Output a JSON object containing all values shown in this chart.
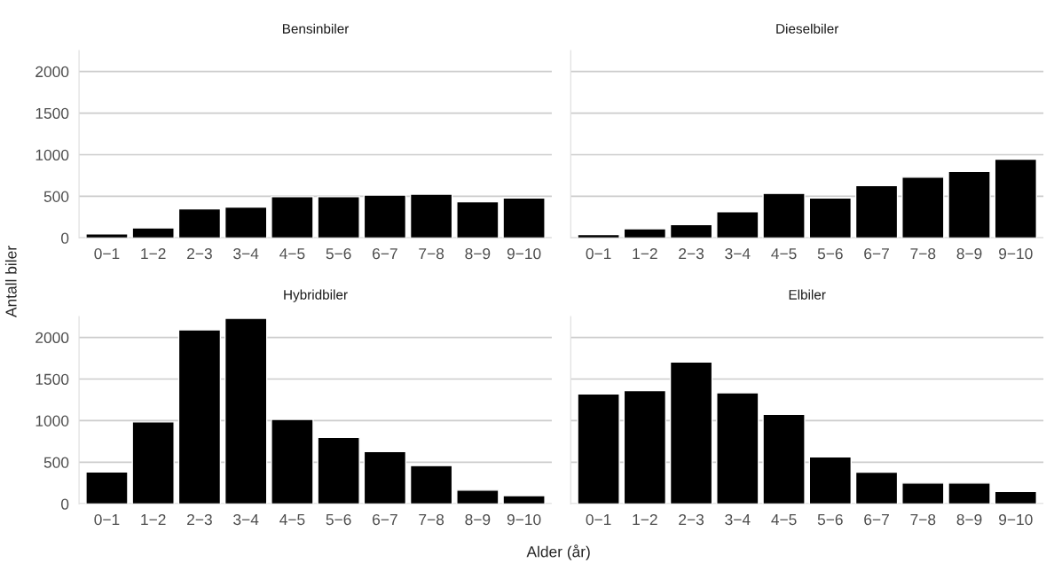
{
  "chart_data": [
    {
      "type": "bar",
      "title": "Bensinbiler",
      "ylabel": "Antall biler",
      "categories": [
        "0−1",
        "1−2",
        "2−3",
        "3−4",
        "4−5",
        "5−6",
        "6−7",
        "7−8",
        "8−9",
        "9−10"
      ],
      "values": [
        50,
        120,
        350,
        370,
        495,
        495,
        515,
        525,
        435,
        480
      ],
      "color": "#000000",
      "ylim": [
        0,
        2250
      ],
      "yticks": [
        0,
        500,
        1000,
        1500,
        2000
      ],
      "grid": "y"
    },
    {
      "type": "bar",
      "title": "Dieselbiler",
      "categories": [
        "0−1",
        "1−2",
        "2−3",
        "3−4",
        "4−5",
        "5−6",
        "6−7",
        "7−8",
        "8−9",
        "9−10"
      ],
      "values": [
        40,
        110,
        160,
        315,
        535,
        480,
        630,
        730,
        800,
        945
      ],
      "color": "#000000",
      "ylim": [
        0,
        2250
      ],
      "yticks": [
        0,
        500,
        1000,
        1500,
        2000
      ],
      "grid": "y",
      "tick_labels": "x"
    },
    {
      "type": "bar",
      "title": "Hybridbiler",
      "categories": [
        "0−1",
        "1−2",
        "2−3",
        "3−4",
        "4−5",
        "5−6",
        "6−7",
        "7−8",
        "8−9",
        "9−10"
      ],
      "values": [
        385,
        985,
        2090,
        2230,
        1015,
        800,
        630,
        460,
        165,
        100
      ],
      "color": "#000000",
      "ylim": [
        0,
        2250
      ],
      "yticks": [
        0,
        500,
        1000,
        1500,
        2000
      ],
      "grid": "y"
    },
    {
      "type": "bar",
      "title": "Elbiler",
      "xlabel": "Alder (år)",
      "categories": [
        "0−1",
        "1−2",
        "2−3",
        "3−4",
        "4−5",
        "5−6",
        "6−7",
        "7−8",
        "8−9",
        "9−10"
      ],
      "values": [
        1320,
        1360,
        1705,
        1335,
        1075,
        565,
        380,
        250,
        250,
        150
      ],
      "color": "#000000",
      "ylim": [
        0,
        2250
      ],
      "yticks": [
        0,
        500,
        1000,
        1500,
        2000
      ],
      "grid": "y",
      "tick_labels": "x"
    }
  ]
}
